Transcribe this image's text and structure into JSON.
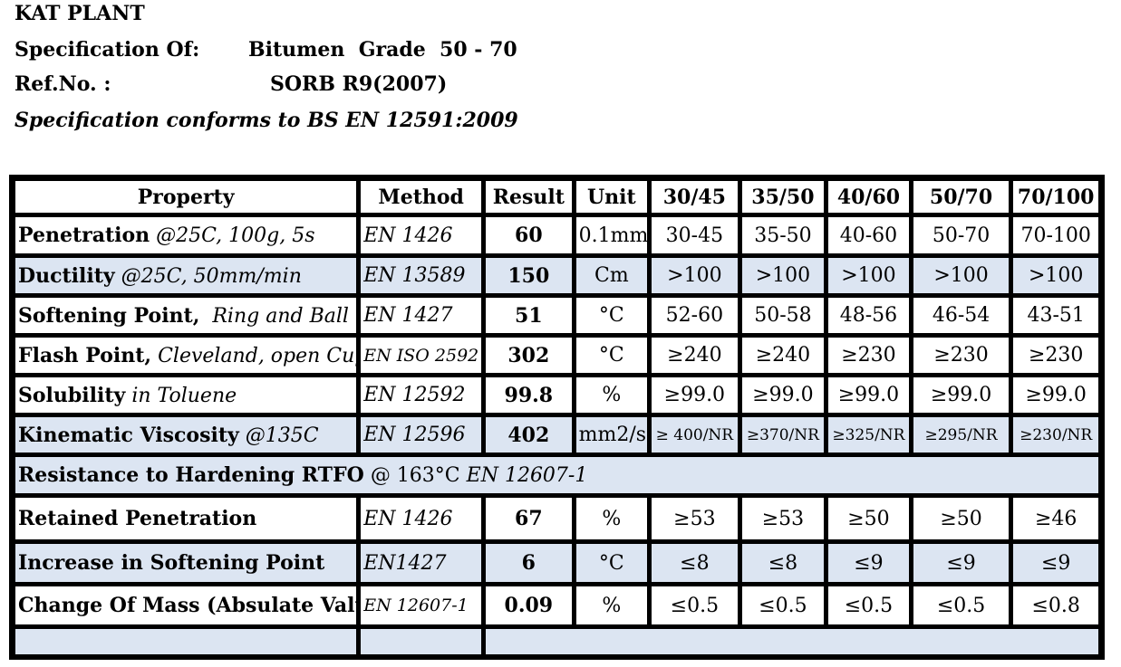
{
  "header": {
    "plant": "KAT PLANT",
    "spec_label": "Specification Of:",
    "spec_value": "Bitumen  Grade  50 - 70",
    "ref_label": "Ref.No. :",
    "ref_value": "SORB R9(2007)",
    "conforms": "Specification conforms to BS EN 12591:2009"
  },
  "table": {
    "columns": [
      "Property",
      "Method",
      "Result",
      "Unit",
      "30/45",
      "35/50",
      "40/60",
      "50/70",
      "70/100"
    ],
    "rows": [
      {
        "prop_bold": "Penetration",
        "prop_italic": " @25C, 100g, 5s",
        "method": "EN 1426",
        "result": "60",
        "unit": "0.1mm",
        "grades": [
          "30-45",
          "35-50",
          "40-60",
          "50-70",
          "70-100"
        ]
      },
      {
        "prop_bold": "Ductility",
        "prop_italic": " @25C, 50mm/min",
        "method": "EN 13589",
        "result": "150",
        "unit": "Cm",
        "grades": [
          ">100",
          ">100",
          ">100",
          ">100",
          ">100"
        ]
      },
      {
        "prop_bold": "Softening Point,",
        "prop_italic": "  Ring and Ball",
        "method": "EN 1427",
        "result": "51",
        "unit": "°C",
        "grades": [
          "52-60",
          "50-58",
          "48-56",
          "46-54",
          "43-51"
        ]
      },
      {
        "prop_bold": "Flash Point,",
        "prop_italic": " Cleveland, open Cup",
        "method": "EN ISO 2592",
        "result": "302",
        "unit": "°C",
        "grades": [
          "≥240",
          "≥240",
          "≥230",
          "≥230",
          "≥230"
        ]
      },
      {
        "prop_bold": "Solubility",
        "prop_italic": " in Toluene",
        "method": "EN 12592",
        "result": "99.8",
        "unit": "%",
        "grades": [
          "≥99.0",
          "≥99.0",
          "≥99.0",
          "≥99.0",
          "≥99.0"
        ]
      },
      {
        "prop_bold": "Kinematic Viscosity",
        "prop_italic": " @135C",
        "method": "EN 12596",
        "result": "402",
        "unit": "mm2/s",
        "grades": [
          "≥ 400/NR",
          "≥370/NR",
          "≥325/NR",
          "≥295/NR",
          "≥230/NR"
        ]
      }
    ],
    "section": {
      "bold": "Resistance to Hardening RTFO",
      "plain": " @ 163°C ",
      "italic": "EN 12607-1"
    },
    "rows2": [
      {
        "prop_bold": "Retained Penetration",
        "method": "EN 1426",
        "result": "67",
        "unit": "%",
        "grades": [
          "≥53",
          "≥53",
          "≥50",
          "≥50",
          "≥46"
        ]
      },
      {
        "prop_bold": "Increase in Softening Point",
        "method": "EN1427",
        "result": "6",
        "unit": "°C",
        "grades": [
          "≤8",
          "≤8",
          "≤9",
          "≤9",
          "≤9"
        ]
      },
      {
        "prop_bold": "Change Of Mass (Absulate Value)",
        "method": "EN 12607-1",
        "result": "0.09",
        "unit": "%",
        "grades": [
          "≤0.5",
          "≤0.5",
          "≤0.5",
          "≤0.5",
          "≤0.8"
        ]
      }
    ]
  }
}
